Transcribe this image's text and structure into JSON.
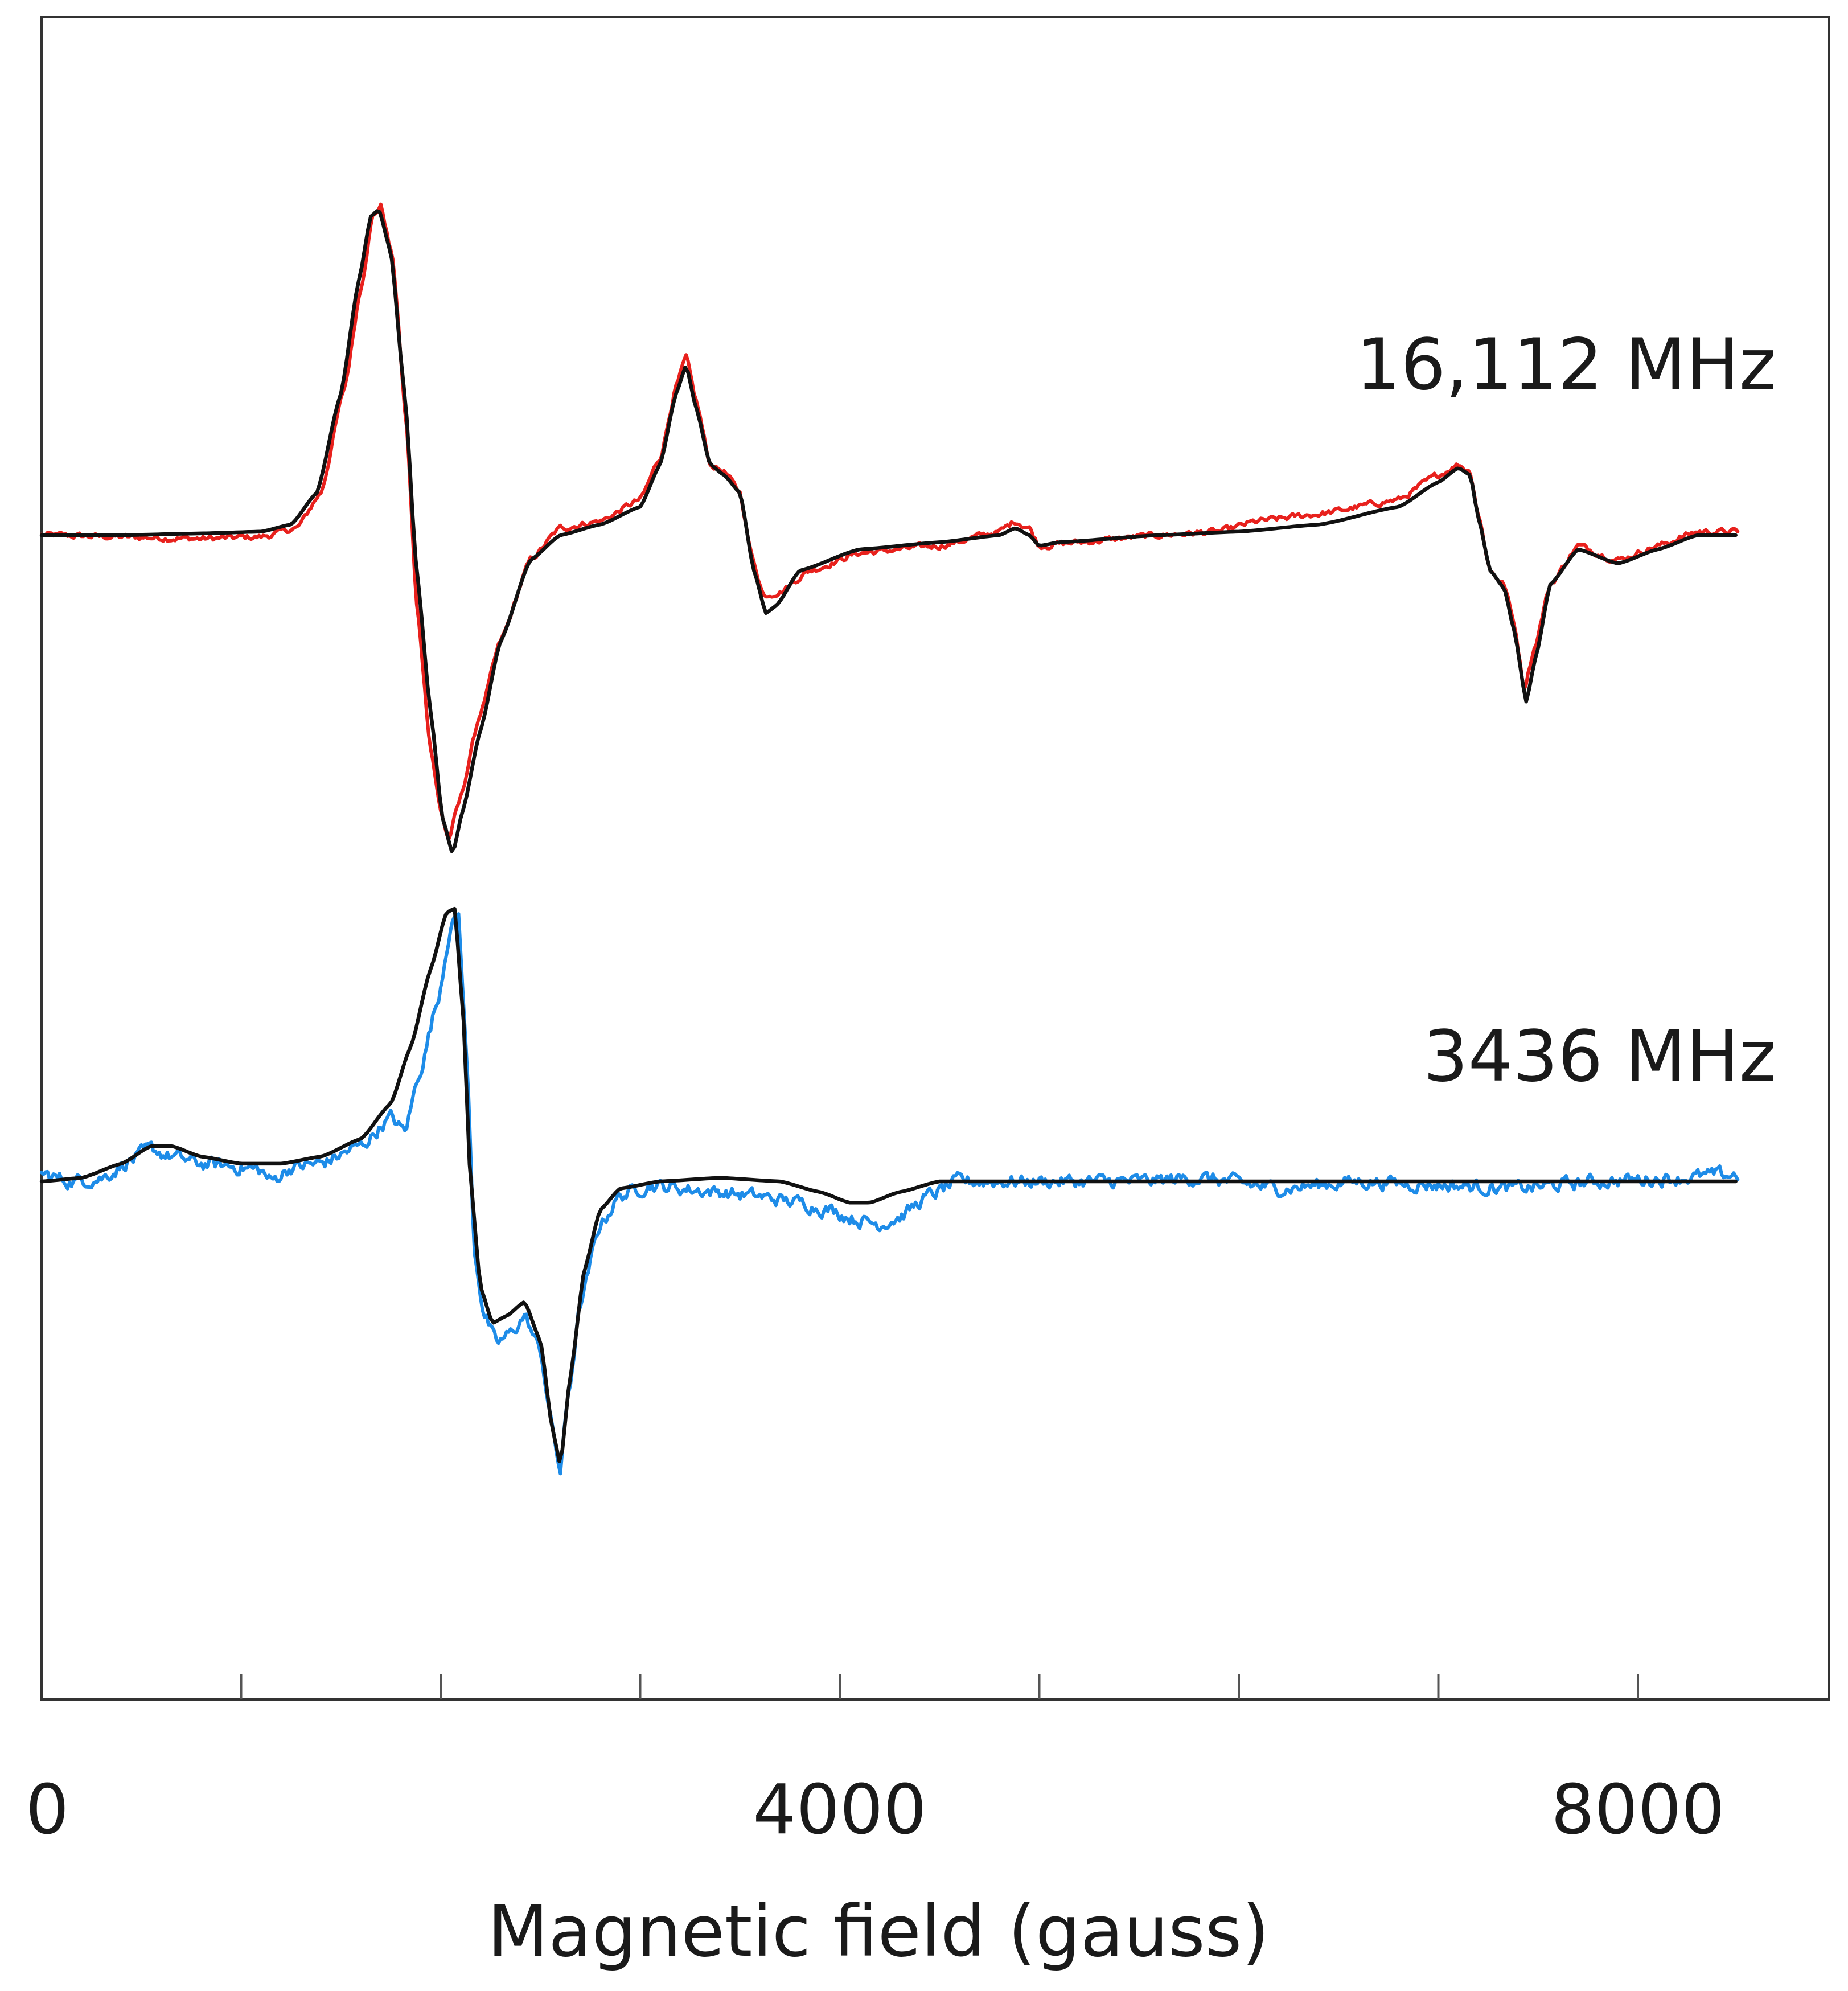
{
  "chart_data": {
    "type": "line",
    "xlabel": "Magnetic field (gauss)",
    "ylabel": "",
    "xlim": [
      0,
      8500
    ],
    "x_ticks": [
      0,
      1000,
      2000,
      3000,
      4000,
      5000,
      6000,
      7000,
      8000
    ],
    "x_tick_labels": [
      {
        "value": 0,
        "label": "0"
      },
      {
        "value": 4000,
        "label": "4000"
      },
      {
        "value": 8000,
        "label": "8000"
      }
    ],
    "grid": false,
    "legend": "none",
    "y_units": "arbitrary (derivative EPR signal, vertically offset)",
    "panels": [
      {
        "label": "16,112 MHz",
        "baseline_offset": 1.0,
        "series": [
          {
            "color": "#e8211d",
            "kind": "experimental",
            "noise": 0.008,
            "points": [
              [
                0,
                0
              ],
              [
                400,
                -0.005
              ],
              [
                800,
                -0.01
              ],
              [
                1100,
                -0.005
              ],
              [
                1280,
                0.02
              ],
              [
                1400,
                0.12
              ],
              [
                1520,
                0.42
              ],
              [
                1600,
                0.7
              ],
              [
                1660,
                0.9
              ],
              [
                1700,
                0.93
              ],
              [
                1760,
                0.78
              ],
              [
                1830,
                0.3
              ],
              [
                1880,
                -0.2
              ],
              [
                1950,
                -0.6
              ],
              [
                2000,
                -0.78
              ],
              [
                2040,
                -0.86
              ],
              [
                2090,
                -0.76
              ],
              [
                2200,
                -0.5
              ],
              [
                2300,
                -0.3
              ],
              [
                2450,
                -0.07
              ],
              [
                2600,
                0.02
              ],
              [
                2800,
                0.04
              ],
              [
                3000,
                0.1
              ],
              [
                3100,
                0.22
              ],
              [
                3180,
                0.42
              ],
              [
                3230,
                0.5
              ],
              [
                3280,
                0.38
              ],
              [
                3350,
                0.2
              ],
              [
                3420,
                0.18
              ],
              [
                3500,
                0.12
              ],
              [
                3560,
                -0.06
              ],
              [
                3620,
                -0.17
              ],
              [
                3700,
                -0.16
              ],
              [
                3850,
                -0.1
              ],
              [
                4100,
                -0.05
              ],
              [
                4500,
                -0.03
              ],
              [
                4800,
                0.01
              ],
              [
                4880,
                0.04
              ],
              [
                4950,
                0.02
              ],
              [
                5000,
                -0.03
              ],
              [
                5200,
                -0.02
              ],
              [
                5600,
                0.0
              ],
              [
                5900,
                0.01
              ],
              [
                6100,
                0.04
              ],
              [
                6400,
                0.06
              ],
              [
                6800,
                0.1
              ],
              [
                7000,
                0.17
              ],
              [
                7100,
                0.2
              ],
              [
                7160,
                0.18
              ],
              [
                7200,
                0.06
              ],
              [
                7260,
                -0.1
              ],
              [
                7330,
                -0.14
              ],
              [
                7380,
                -0.25
              ],
              [
                7430,
                -0.43
              ],
              [
                7480,
                -0.32
              ],
              [
                7560,
                -0.14
              ],
              [
                7700,
                -0.03
              ],
              [
                7900,
                -0.07
              ],
              [
                8100,
                -0.03
              ],
              [
                8300,
                0.01
              ],
              [
                8500,
                0.01
              ]
            ]
          },
          {
            "color": "#111111",
            "kind": "simulation",
            "points": [
              [
                0,
                0
              ],
              [
                400,
                0
              ],
              [
                800,
                0.005
              ],
              [
                1100,
                0.01
              ],
              [
                1250,
                0.03
              ],
              [
                1380,
                0.12
              ],
              [
                1500,
                0.4
              ],
              [
                1590,
                0.72
              ],
              [
                1650,
                0.9
              ],
              [
                1690,
                0.92
              ],
              [
                1750,
                0.8
              ],
              [
                1820,
                0.4
              ],
              [
                1880,
                -0.1
              ],
              [
                1950,
                -0.5
              ],
              [
                2010,
                -0.8
              ],
              [
                2060,
                -0.9
              ],
              [
                2110,
                -0.78
              ],
              [
                2200,
                -0.55
              ],
              [
                2300,
                -0.3
              ],
              [
                2450,
                -0.07
              ],
              [
                2600,
                0.0
              ],
              [
                2800,
                0.03
              ],
              [
                3000,
                0.08
              ],
              [
                3100,
                0.2
              ],
              [
                3180,
                0.4
              ],
              [
                3230,
                0.48
              ],
              [
                3280,
                0.36
              ],
              [
                3350,
                0.2
              ],
              [
                3420,
                0.17
              ],
              [
                3500,
                0.12
              ],
              [
                3570,
                -0.1
              ],
              [
                3630,
                -0.22
              ],
              [
                3680,
                -0.2
              ],
              [
                3800,
                -0.1
              ],
              [
                4100,
                -0.04
              ],
              [
                4500,
                -0.02
              ],
              [
                4800,
                0.0
              ],
              [
                4880,
                0.02
              ],
              [
                4950,
                0.0
              ],
              [
                5000,
                -0.03
              ],
              [
                5100,
                -0.02
              ],
              [
                5600,
                0.0
              ],
              [
                6000,
                0.01
              ],
              [
                6400,
                0.03
              ],
              [
                6800,
                0.08
              ],
              [
                7000,
                0.15
              ],
              [
                7100,
                0.19
              ],
              [
                7160,
                0.17
              ],
              [
                7200,
                0.05
              ],
              [
                7260,
                -0.1
              ],
              [
                7330,
                -0.15
              ],
              [
                7380,
                -0.27
              ],
              [
                7440,
                -0.47
              ],
              [
                7490,
                -0.34
              ],
              [
                7560,
                -0.14
              ],
              [
                7700,
                -0.04
              ],
              [
                7900,
                -0.08
              ],
              [
                8100,
                -0.04
              ],
              [
                8300,
                0.0
              ],
              [
                8500,
                0.0
              ]
            ]
          }
        ]
      },
      {
        "label": "3436 MHz",
        "baseline_offset": 0.0,
        "series": [
          {
            "color": "#1e8ce8",
            "kind": "experimental",
            "noise": 0.018,
            "points": [
              [
                0,
                0.02
              ],
              [
                150,
                0.0
              ],
              [
                300,
                0.01
              ],
              [
                450,
                0.06
              ],
              [
                550,
                0.09
              ],
              [
                650,
                0.07
              ],
              [
                800,
                0.05
              ],
              [
                1000,
                0.04
              ],
              [
                1100,
                0.03
              ],
              [
                1150,
                0.0
              ],
              [
                1250,
                0.04
              ],
              [
                1400,
                0.05
              ],
              [
                1600,
                0.1
              ],
              [
                1750,
                0.18
              ],
              [
                1820,
                0.14
              ],
              [
                1900,
                0.32
              ],
              [
                1980,
                0.5
              ],
              [
                2050,
                0.72
              ],
              [
                2090,
                0.75
              ],
              [
                2130,
                0.35
              ],
              [
                2170,
                -0.2
              ],
              [
                2220,
                -0.38
              ],
              [
                2280,
                -0.46
              ],
              [
                2350,
                -0.43
              ],
              [
                2420,
                -0.38
              ],
              [
                2500,
                -0.48
              ],
              [
                2560,
                -0.7
              ],
              [
                2600,
                -0.82
              ],
              [
                2640,
                -0.6
              ],
              [
                2700,
                -0.35
              ],
              [
                2800,
                -0.12
              ],
              [
                2900,
                -0.04
              ],
              [
                3050,
                -0.01
              ],
              [
                3200,
                -0.02
              ],
              [
                3400,
                -0.03
              ],
              [
                3550,
                -0.04
              ],
              [
                3800,
                -0.06
              ],
              [
                3950,
                -0.08
              ],
              [
                4100,
                -0.11
              ],
              [
                4200,
                -0.12
              ],
              [
                4300,
                -0.1
              ],
              [
                4450,
                -0.04
              ],
              [
                4600,
                0.0
              ],
              [
                5000,
                0.0
              ],
              [
                5500,
                0.0
              ],
              [
                5800,
                0.01
              ],
              [
                6200,
                -0.02
              ],
              [
                6600,
                0.0
              ],
              [
                7000,
                -0.01
              ],
              [
                7400,
                -0.02
              ],
              [
                7800,
                0.0
              ],
              [
                8200,
                0.01
              ],
              [
                8500,
                0.02
              ]
            ]
          },
          {
            "color": "#111111",
            "kind": "simulation",
            "points": [
              [
                0,
                0
              ],
              [
                200,
                0.01
              ],
              [
                400,
                0.05
              ],
              [
                550,
                0.1
              ],
              [
                650,
                0.1
              ],
              [
                800,
                0.07
              ],
              [
                1000,
                0.05
              ],
              [
                1200,
                0.05
              ],
              [
                1400,
                0.07
              ],
              [
                1600,
                0.12
              ],
              [
                1750,
                0.22
              ],
              [
                1850,
                0.38
              ],
              [
                1950,
                0.6
              ],
              [
                2030,
                0.76
              ],
              [
                2070,
                0.77
              ],
              [
                2110,
                0.5
              ],
              [
                2150,
                0.0
              ],
              [
                2200,
                -0.3
              ],
              [
                2260,
                -0.4
              ],
              [
                2330,
                -0.38
              ],
              [
                2420,
                -0.34
              ],
              [
                2500,
                -0.45
              ],
              [
                2560,
                -0.7
              ],
              [
                2600,
                -0.8
              ],
              [
                2650,
                -0.55
              ],
              [
                2720,
                -0.25
              ],
              [
                2800,
                -0.08
              ],
              [
                2900,
                -0.02
              ],
              [
                3100,
                0.0
              ],
              [
                3400,
                0.01
              ],
              [
                3700,
                0.0
              ],
              [
                3900,
                -0.03
              ],
              [
                4050,
                -0.06
              ],
              [
                4150,
                -0.06
              ],
              [
                4300,
                -0.03
              ],
              [
                4500,
                0.0
              ],
              [
                5000,
                0.0
              ],
              [
                5500,
                0.0
              ],
              [
                6000,
                0.0
              ],
              [
                7000,
                0.0
              ],
              [
                8000,
                0.0
              ],
              [
                8500,
                0.0
              ]
            ]
          }
        ]
      }
    ]
  }
}
